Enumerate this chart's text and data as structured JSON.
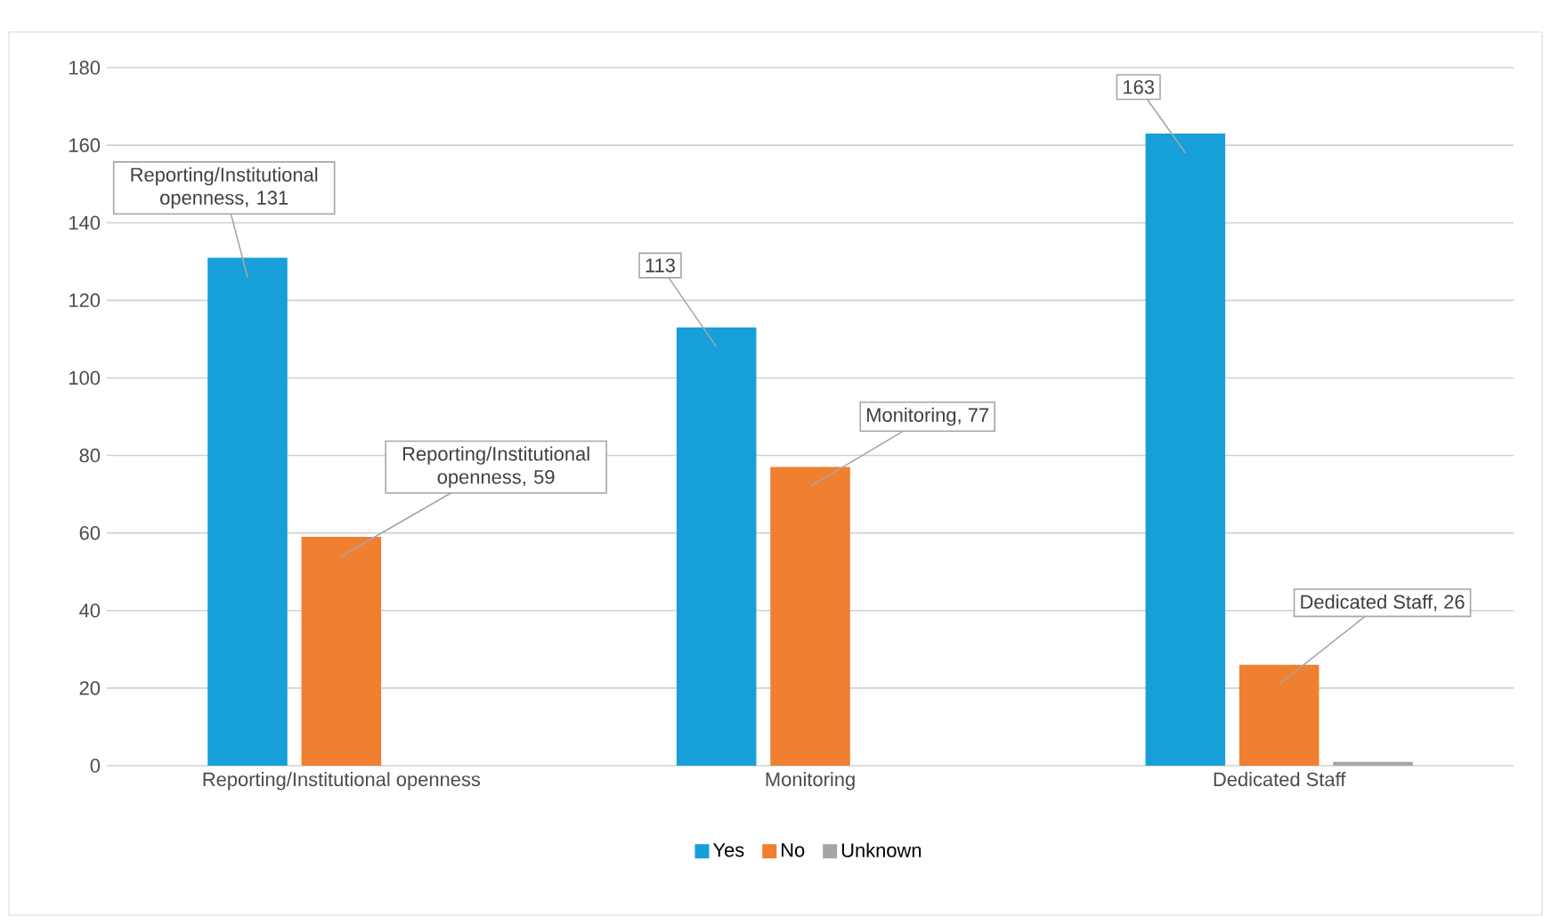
{
  "chart_data": {
    "type": "bar",
    "categories": [
      "Reporting/Institutional openness",
      "Monitoring",
      "Dedicated Staff"
    ],
    "series": [
      {
        "name": "Yes",
        "color": "#169fd8",
        "values": [
          131,
          113,
          163
        ],
        "value_labels": [
          "Reporting/Institutional openness, 131",
          "113",
          "163"
        ]
      },
      {
        "name": "No",
        "color": "#f07f2f",
        "values": [
          59,
          77,
          26
        ],
        "value_labels": [
          "Reporting/Institutional openness, 59",
          "Monitoring, 77",
          "Dedicated Staff, 26"
        ]
      },
      {
        "name": "Unknown",
        "color": "#a5a5a5",
        "values": [
          0,
          0,
          1
        ],
        "value_labels": [
          null,
          null,
          null
        ]
      }
    ],
    "ylim": [
      0,
      180
    ],
    "yticks": [
      0,
      20,
      40,
      60,
      80,
      100,
      120,
      140,
      160,
      180
    ],
    "grid": "y",
    "legend": "bottom"
  }
}
